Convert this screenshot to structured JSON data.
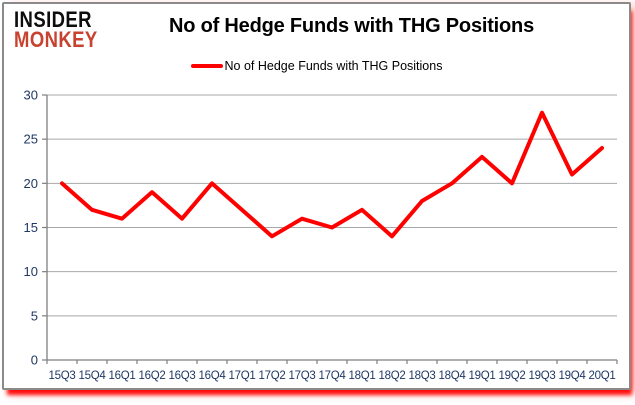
{
  "logo": {
    "line1": "INSIDER",
    "line2": "MONKEY",
    "accent_color": "#c7432f"
  },
  "title": "No of Hedge Funds with THG Positions",
  "legend": {
    "label": "No of Hedge Funds with THG Positions",
    "color": "#ff0000"
  },
  "chart_data": {
    "type": "line",
    "title": "No of Hedge Funds with THG Positions",
    "categories": [
      "15Q3",
      "15Q4",
      "16Q1",
      "16Q2",
      "16Q3",
      "16Q4",
      "17Q1",
      "17Q2",
      "17Q3",
      "17Q4",
      "18Q1",
      "18Q2",
      "18Q3",
      "18Q4",
      "19Q1",
      "19Q2",
      "19Q3",
      "19Q4",
      "20Q1"
    ],
    "series": [
      {
        "name": "No of Hedge Funds with THG Positions",
        "color": "#ff0000",
        "values": [
          20,
          17,
          16,
          19,
          16,
          20,
          17,
          14,
          16,
          15,
          17,
          14,
          18,
          20,
          23,
          20,
          28,
          21,
          24
        ]
      }
    ],
    "xlabel": "",
    "ylabel": "",
    "ylim": [
      0,
      30
    ],
    "yticks": [
      0,
      5,
      10,
      15,
      20,
      25,
      30
    ],
    "grid": "horizontal",
    "legend_position": "top-center"
  },
  "colors": {
    "gridline": "#a8a8a8",
    "axis": "#7f7f7f",
    "tick_label": "#1f3864",
    "series": "#ff0000"
  }
}
